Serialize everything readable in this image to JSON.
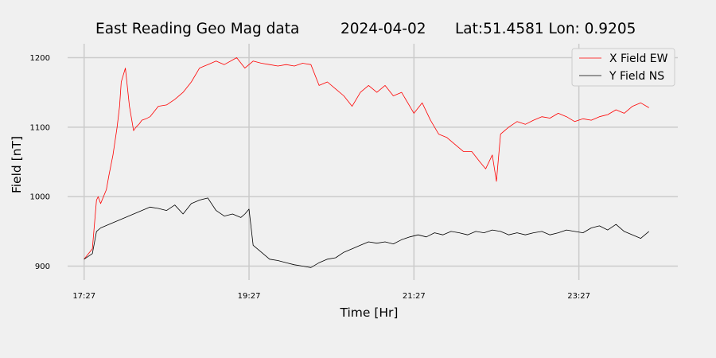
{
  "chart_data": {
    "type": "line",
    "title_parts": [
      "East Reading Geo Mag data",
      "2024-04-02",
      "Lat:51.4581  Lon: 0.9205"
    ],
    "xlabel": "Time  [Hr]",
    "ylabel": "Field  [nT]",
    "x_unit": "hours",
    "xlim": [
      17.25,
      24.65
    ],
    "ylim": [
      880,
      1220
    ],
    "x_ticks": [
      {
        "value": 17.45,
        "label": "17:27"
      },
      {
        "value": 19.45,
        "label": "19:27"
      },
      {
        "value": 21.45,
        "label": "21:27"
      },
      {
        "value": 23.45,
        "label": "23:27"
      }
    ],
    "y_ticks": [
      {
        "value": 900,
        "label": "900"
      },
      {
        "value": 1000,
        "label": "1000"
      },
      {
        "value": 1100,
        "label": "1100"
      },
      {
        "value": 1200,
        "label": "1200"
      }
    ],
    "grid": true,
    "legend_position": "top-right",
    "series": [
      {
        "name": "X Field EW",
        "color": "#ff0000",
        "x": [
          17.45,
          17.55,
          17.6,
          17.62,
          17.65,
          17.72,
          17.75,
          17.8,
          17.85,
          17.88,
          17.9,
          17.95,
          18.0,
          18.05,
          18.08,
          18.12,
          18.15,
          18.2,
          18.25,
          18.35,
          18.45,
          18.55,
          18.65,
          18.75,
          18.85,
          18.95,
          19.05,
          19.15,
          19.3,
          19.4,
          19.5,
          19.6,
          19.7,
          19.8,
          19.9,
          20.0,
          20.1,
          20.2,
          20.3,
          20.4,
          20.5,
          20.6,
          20.7,
          20.8,
          20.9,
          21.0,
          21.1,
          21.2,
          21.3,
          21.45,
          21.55,
          21.65,
          21.75,
          21.85,
          21.95,
          22.05,
          22.15,
          22.25,
          22.32,
          22.4,
          22.45,
          22.5,
          22.6,
          22.7,
          22.8,
          22.9,
          23.0,
          23.1,
          23.2,
          23.3,
          23.4,
          23.5,
          23.6,
          23.7,
          23.8,
          23.9,
          24.0,
          24.1,
          24.2,
          24.3
        ],
        "y": [
          910,
          925,
          995,
          1000,
          990,
          1010,
          1030,
          1060,
          1100,
          1130,
          1165,
          1185,
          1130,
          1095,
          1100,
          1105,
          1110,
          1112,
          1115,
          1130,
          1132,
          1140,
          1150,
          1165,
          1185,
          1190,
          1195,
          1190,
          1200,
          1185,
          1195,
          1192,
          1190,
          1188,
          1190,
          1188,
          1192,
          1190,
          1160,
          1165,
          1155,
          1145,
          1130,
          1150,
          1160,
          1150,
          1160,
          1145,
          1150,
          1120,
          1135,
          1110,
          1090,
          1085,
          1075,
          1065,
          1065,
          1050,
          1040,
          1060,
          1022,
          1090,
          1100,
          1108,
          1104,
          1110,
          1115,
          1113,
          1120,
          1115,
          1108,
          1112,
          1110,
          1115,
          1118,
          1125,
          1120,
          1130,
          1135,
          1128
        ]
      },
      {
        "name": "Y Field NS",
        "color": "#000000",
        "x": [
          17.45,
          17.55,
          17.6,
          17.65,
          17.75,
          17.85,
          17.95,
          18.05,
          18.15,
          18.25,
          18.35,
          18.45,
          18.55,
          18.65,
          18.75,
          18.85,
          18.95,
          19.05,
          19.15,
          19.25,
          19.35,
          19.4,
          19.45,
          19.5,
          19.6,
          19.7,
          19.8,
          19.9,
          20.0,
          20.1,
          20.2,
          20.3,
          20.4,
          20.5,
          20.6,
          20.7,
          20.8,
          20.9,
          21.0,
          21.1,
          21.2,
          21.3,
          21.4,
          21.5,
          21.6,
          21.7,
          21.8,
          21.9,
          22.0,
          22.1,
          22.2,
          22.3,
          22.4,
          22.5,
          22.6,
          22.7,
          22.8,
          22.9,
          23.0,
          23.1,
          23.2,
          23.3,
          23.4,
          23.5,
          23.6,
          23.7,
          23.8,
          23.9,
          24.0,
          24.1,
          24.2,
          24.3
        ],
        "y": [
          910,
          918,
          950,
          955,
          960,
          965,
          970,
          975,
          980,
          985,
          983,
          980,
          988,
          975,
          990,
          995,
          998,
          980,
          972,
          975,
          970,
          975,
          982,
          930,
          920,
          910,
          908,
          905,
          902,
          900,
          898,
          905,
          910,
          912,
          920,
          925,
          930,
          935,
          933,
          935,
          932,
          938,
          942,
          945,
          942,
          948,
          945,
          950,
          948,
          945,
          950,
          948,
          952,
          950,
          945,
          948,
          945,
          948,
          950,
          945,
          948,
          952,
          950,
          948,
          955,
          958,
          952,
          960,
          950,
          945,
          940,
          950
        ]
      }
    ]
  }
}
